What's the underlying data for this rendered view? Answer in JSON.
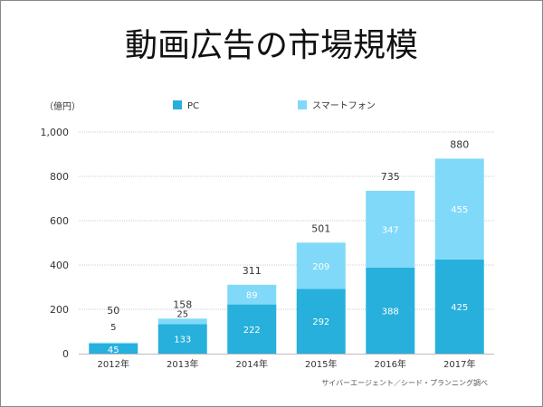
{
  "chart_data": {
    "type": "bar",
    "stacked": true,
    "title": "動画広告の市場規模",
    "ylabel": "（億円）",
    "xlabel": "",
    "ylim": [
      0,
      1000
    ],
    "yticks": [
      0,
      200,
      400,
      600,
      800,
      1000
    ],
    "ytick_labels": [
      "0",
      "200",
      "400",
      "600",
      "800",
      "1,000"
    ],
    "grid": true,
    "legend_position": "top",
    "categories": [
      "2012年",
      "2013年",
      "2014年",
      "2015年",
      "2016年",
      "2017年"
    ],
    "series": [
      {
        "name": "PC",
        "color": "#27b0dc",
        "values": [
          45,
          133,
          222,
          292,
          388,
          425
        ]
      },
      {
        "name": "スマートフォン",
        "color": "#80d9f9",
        "values": [
          5,
          25,
          89,
          209,
          347,
          455
        ]
      }
    ],
    "totals": [
      50,
      158,
      311,
      501,
      735,
      880
    ],
    "source": "サイバーエージェント／シード・プランニング調べ"
  }
}
